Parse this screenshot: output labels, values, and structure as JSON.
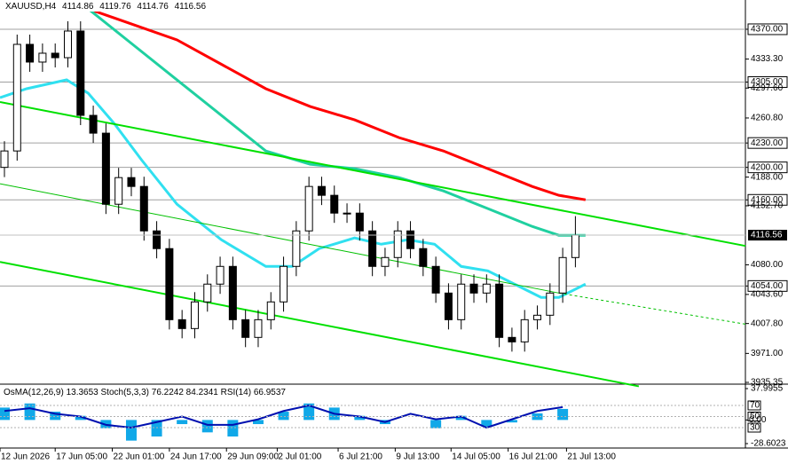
{
  "chart_data": {
    "type": "candlestick",
    "title": "XAUUSD,H4",
    "header_values": [
      4114.86,
      4119.76,
      4114.76,
      4116.56
    ],
    "open": [
      4200.0,
      4220.2,
      4351.4,
      4329.6,
      4340.5,
      4335.0,
      4367.8,
      4264.0,
      4242.1,
      4154.6,
      4187.4,
      4176.5,
      4121.8,
      4100.0,
      4012.5,
      4001.6,
      4034.4,
      4056.3,
      4078.1,
      4012.5,
      3990.7,
      4012.5,
      4034.4,
      4078.1,
      4121.8,
      4176.5,
      4165.6,
      4143.7,
      4143.7,
      4121.8,
      4078.1,
      4089.0,
      4121.8,
      4100.0,
      4078.1,
      4045.3,
      4012.5,
      4056.3,
      4045.3,
      4056.3,
      3990.7,
      3985.2,
      4012.5,
      4018.0,
      4045.3,
      4089.0
    ],
    "high": [
      4232.2,
      4363.4,
      4363.4,
      4352.5,
      4352.5,
      4379.8,
      4379.8,
      4276.0,
      4254.1,
      4199.4,
      4199.4,
      4188.5,
      4133.8,
      4112.0,
      4024.5,
      4046.4,
      4068.3,
      4090.1,
      4090.1,
      4024.5,
      4024.5,
      4046.4,
      4090.1,
      4133.8,
      4188.5,
      4188.5,
      4177.6,
      4155.7,
      4155.7,
      4133.8,
      4101.0,
      4133.8,
      4133.8,
      4112.0,
      4090.1,
      4057.3,
      4068.3,
      4068.3,
      4068.3,
      4068.3,
      4002.7,
      4024.5,
      4030.0,
      4057.3,
      4101.0,
      4140.0
    ],
    "low": [
      4188.0,
      4208.2,
      4317.6,
      4317.6,
      4323.0,
      4323.0,
      4252.0,
      4230.1,
      4142.6,
      4142.6,
      4164.5,
      4109.8,
      4088.0,
      4000.5,
      3989.6,
      3989.6,
      4022.4,
      4044.3,
      4000.5,
      3978.7,
      3978.7,
      4000.5,
      4022.4,
      4066.1,
      4109.8,
      4153.6,
      4131.7,
      4131.7,
      4109.8,
      4066.1,
      4066.1,
      4077.0,
      4088.0,
      4066.1,
      4033.3,
      4000.5,
      4000.5,
      4033.3,
      4033.3,
      3978.7,
      3973.2,
      3973.2,
      4000.5,
      4006.0,
      4033.3,
      4077.0
    ],
    "close": [
      4220.2,
      4351.4,
      4329.6,
      4340.5,
      4335.0,
      4367.8,
      4264.0,
      4242.1,
      4154.6,
      4187.4,
      4176.5,
      4121.8,
      4100.0,
      4012.5,
      4001.6,
      4034.4,
      4056.3,
      4078.1,
      4012.5,
      3990.7,
      4012.5,
      4034.4,
      4078.1,
      4121.8,
      4176.5,
      4165.6,
      4143.7,
      4143.7,
      4121.8,
      4078.1,
      4089.0,
      4121.8,
      4100.0,
      4078.1,
      4045.3,
      4012.5,
      4056.3,
      4045.3,
      4056.3,
      3990.7,
      3985.2,
      4012.5,
      4018.0,
      4045.3,
      4089.0,
      4116.56
    ],
    "last_price": 4116.56,
    "lines": [
      {
        "color": "#ff0000",
        "width": 3,
        "x": [
          6.6,
          13.6,
          20.6,
          24.1,
          27.6,
          31.1,
          34.6,
          38.1,
          41.6,
          43.7,
          45.8
        ],
        "values": [
          4395.1,
          4356.9,
          4296.8,
          4274.9,
          4258.5,
          4236.6,
          4220.2,
          4198.4,
          4176.5,
          4165.6,
          4160.1
        ]
      },
      {
        "color": "#20d0a0",
        "width": 3,
        "x": [
          6.6,
          10.1,
          13.6,
          17.1,
          20.6,
          24.1,
          27.6,
          31.1,
          34.6,
          38.1,
          41.6,
          43.7,
          45.8
        ],
        "values": [
          4395.1,
          4351.4,
          4307.7,
          4264.0,
          4220.2,
          4203.8,
          4198.4,
          4187.4,
          4171.0,
          4149.2,
          4127.3,
          4116.4,
          4116.4
        ]
      },
      {
        "color": "#30e0f0",
        "width": 3,
        "x": [
          -0.35,
          1.75,
          4.9,
          6.6,
          8.7,
          10.8,
          13.6,
          17.1,
          20.6,
          22.7,
          24.8,
          27.6,
          29.7,
          31.8,
          33.9,
          36.0,
          38.1,
          40.2,
          42.3,
          43.7,
          45.8
        ],
        "values": [
          4285.8,
          4296.8,
          4307.7,
          4291.3,
          4253.0,
          4209.3,
          4154.6,
          4110.9,
          4078.1,
          4078.1,
          4100.0,
          4113.1,
          4105.4,
          4110.9,
          4105.4,
          4078.1,
          4072.6,
          4056.3,
          4039.9,
          4039.9,
          4056.3
        ]
      },
      {
        "color": "#00e000",
        "width": 2,
        "x": [
          -0.35,
          58.4
        ],
        "values": [
          4280.4,
          4103.3
        ]
      },
      {
        "color": "#00e000",
        "width": 2,
        "x": [
          -0.35,
          50.0
        ],
        "values": [
          4083.6,
          3930.5
        ]
      },
      {
        "color": "#00c000",
        "width": 1,
        "x": [
          -0.35,
          43.7
        ],
        "values": [
          4179.8,
          4045.3
        ]
      },
      {
        "color": "#00c000",
        "width": 1,
        "dashed": true,
        "x": [
          43.7,
          58.4
        ],
        "values": [
          4045.3,
          4007.0
        ]
      }
    ],
    "xlim": [
      -0.35,
      58.4
    ],
    "ylim": [
      3935.35,
      4406
    ],
    "yticks": [
      {
        "value": 4370,
        "label": "4370.00",
        "level": true
      },
      {
        "value": 4333.3,
        "label": "4333.30"
      },
      {
        "value": 4305,
        "label": "4305.00",
        "level": true
      },
      {
        "value": 4297.6,
        "label": "4297.60"
      },
      {
        "value": 4260.8,
        "label": "4260.80"
      },
      {
        "value": 4230,
        "label": "4230.00",
        "level": true
      },
      {
        "value": 4200,
        "label": "4200.00",
        "level": true
      },
      {
        "value": 4188,
        "label": "4188.00"
      },
      {
        "value": 4160,
        "label": "4160.00",
        "level": true
      },
      {
        "value": 4152.7,
        "label": "4152.70"
      },
      {
        "value": 4080,
        "label": "4080.00"
      },
      {
        "value": 4054,
        "label": "4054.00",
        "level": true
      },
      {
        "value": 4043.6,
        "label": "4043.60"
      },
      {
        "value": 4007.8,
        "label": "4007.80"
      },
      {
        "value": 3971,
        "label": "3971.00"
      },
      {
        "value": 3935.35,
        "label": "3935.35"
      }
    ],
    "xticks": [
      {
        "value": -0.35,
        "label": "12 Jun 2026"
      },
      {
        "value": 4.0,
        "label": "17 Jun 05:00"
      },
      {
        "value": 8.5,
        "label": "22 Jun 01:00"
      },
      {
        "value": 13.0,
        "label": "24 Jun 17:00"
      },
      {
        "value": 17.5,
        "label": "29 Jun 09:00"
      },
      {
        "value": 21.5,
        "label": "2 Jul 01:00"
      },
      {
        "value": 26.3,
        "label": "6 Jul 21:00"
      },
      {
        "value": 30.8,
        "label": "9 Jul 13:00"
      },
      {
        "value": 35.2,
        "label": "14 Jul 05:00"
      },
      {
        "value": 39.7,
        "label": "16 Jul 21:00"
      },
      {
        "value": 44.3,
        "label": "21 Jul 13:00"
      }
    ],
    "indicator": {
      "title": "OsMA(12,26,9) 13.3653  Stoch(5,3,3) 76.2242 84.2341  RSI(14) 66.9537",
      "x": [
        0,
        2,
        4,
        6,
        8,
        10,
        12,
        14,
        16,
        18,
        20,
        22,
        24,
        26,
        28,
        30,
        32,
        34,
        36,
        38,
        40,
        42,
        44
      ],
      "osma": [
        15,
        20,
        10,
        5,
        -10,
        -25,
        -20,
        -5,
        -15,
        -20,
        -5,
        10,
        20,
        15,
        5,
        -5,
        0,
        -10,
        5,
        -8,
        -3,
        8,
        13.3653
      ],
      "osma_color": "#10a8e8",
      "osma_ylim": [
        -28.6023,
        37.9955
      ],
      "osma_ticks": [
        37.9955,
        {
          "value": 0,
          "label": "0.00"
        },
        -28.6023
      ],
      "rsi": [
        60,
        65,
        55,
        50,
        35,
        30,
        40,
        50,
        35,
        35,
        45,
        60,
        70,
        55,
        50,
        40,
        55,
        45,
        50,
        30,
        45,
        60,
        66.9537
      ],
      "rsi_color": "#0010b0",
      "rsi_ylim": [
        1.2,
        100.4
      ],
      "rsi_ticks": [
        70,
        50,
        30
      ]
    }
  }
}
